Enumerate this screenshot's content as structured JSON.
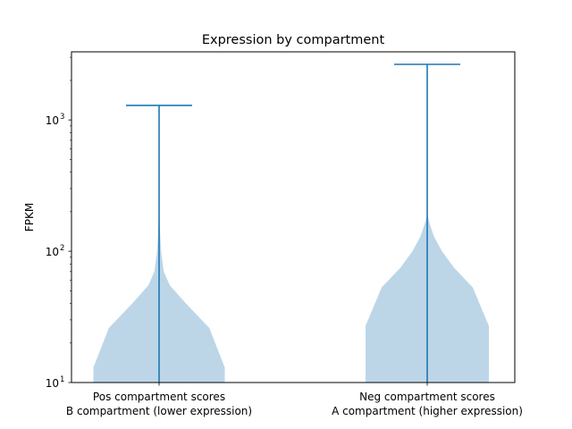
{
  "chart_data": {
    "type": "violin",
    "title": "Expression by compartment",
    "xlabel": "",
    "ylabel": "FPKM",
    "yscale": "log",
    "ylim": [
      10,
      3300
    ],
    "yticks": [
      {
        "value": 10,
        "base": "10",
        "exp": "1"
      },
      {
        "value": 100,
        "base": "10",
        "exp": "2"
      },
      {
        "value": 1000,
        "base": "10",
        "exp": "3"
      }
    ],
    "grid": false,
    "categories": [
      {
        "line1": "Pos compartment scores",
        "line2": "B compartment (lower expression)"
      },
      {
        "line1": "Neg compartment scores",
        "line2": "A compartment (higher expression)"
      }
    ],
    "series": [
      {
        "min": 10,
        "max": 1290,
        "density": [
          {
            "y": 10,
            "w": 0.98
          },
          {
            "y": 13,
            "w": 0.98
          },
          {
            "y": 26,
            "w": 0.75
          },
          {
            "y": 40,
            "w": 0.4
          },
          {
            "y": 55,
            "w": 0.16
          },
          {
            "y": 70,
            "w": 0.07
          },
          {
            "y": 100,
            "w": 0.03
          },
          {
            "y": 150,
            "w": 0.012
          },
          {
            "y": 230,
            "w": 0.0
          }
        ]
      },
      {
        "min": 10,
        "max": 2650,
        "density": [
          {
            "y": 10,
            "w": 0.92
          },
          {
            "y": 27,
            "w": 0.92
          },
          {
            "y": 53,
            "w": 0.68
          },
          {
            "y": 75,
            "w": 0.4
          },
          {
            "y": 100,
            "w": 0.22
          },
          {
            "y": 130,
            "w": 0.1
          },
          {
            "y": 160,
            "w": 0.04
          },
          {
            "y": 190,
            "w": 0.0
          }
        ]
      }
    ],
    "colors": {
      "fill": "#bcd6e8",
      "line": "#1f77b4"
    }
  }
}
